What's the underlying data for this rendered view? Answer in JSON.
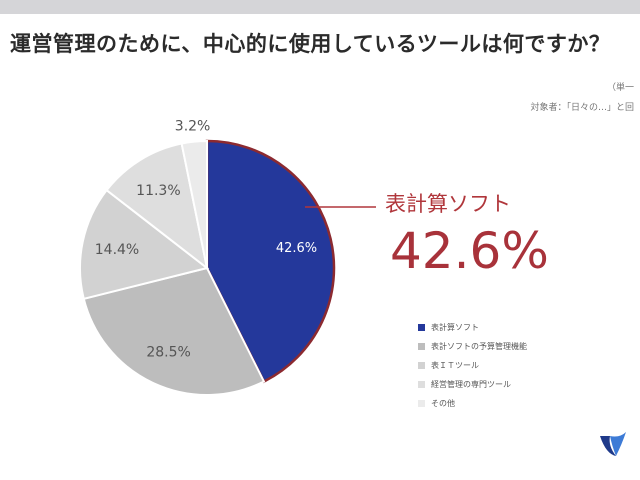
{
  "title": "運営管理のために、中心的に使用しているツールは何ですか？",
  "notes": [
    "（単一",
    "対象者：「日々の…」と回"
  ],
  "callout": {
    "label": "表計算ソフト",
    "value": "42.6%"
  },
  "colors": {
    "highlight": "#24389b",
    "accent_text": "#b0363b",
    "segments": [
      "#24389b",
      "#bdbdbd",
      "#d2d2d2",
      "#dedede",
      "#ebebeb"
    ]
  },
  "chart_data": {
    "type": "pie",
    "start_angle": "12 o'clock, clockwise",
    "categories": [
      "表計算ソフト",
      "表計ソフトの予算管理機能",
      "表ＩＴツール",
      "経営管理の専門ツール",
      "その他"
    ],
    "values": [
      42.6,
      28.5,
      14.4,
      11.3,
      3.2
    ],
    "labels": [
      "42.6%",
      "28.5%",
      "14.4%",
      "11.3%",
      "3.2%"
    ],
    "legend": "bottom-right",
    "legend_entries": [
      "表計算ソフト",
      "表計ソフトの予算管理機能",
      "表ＩＴツール",
      "経営管理の専門ツール",
      "その他"
    ]
  },
  "logo_icon": "bird-logo-icon"
}
